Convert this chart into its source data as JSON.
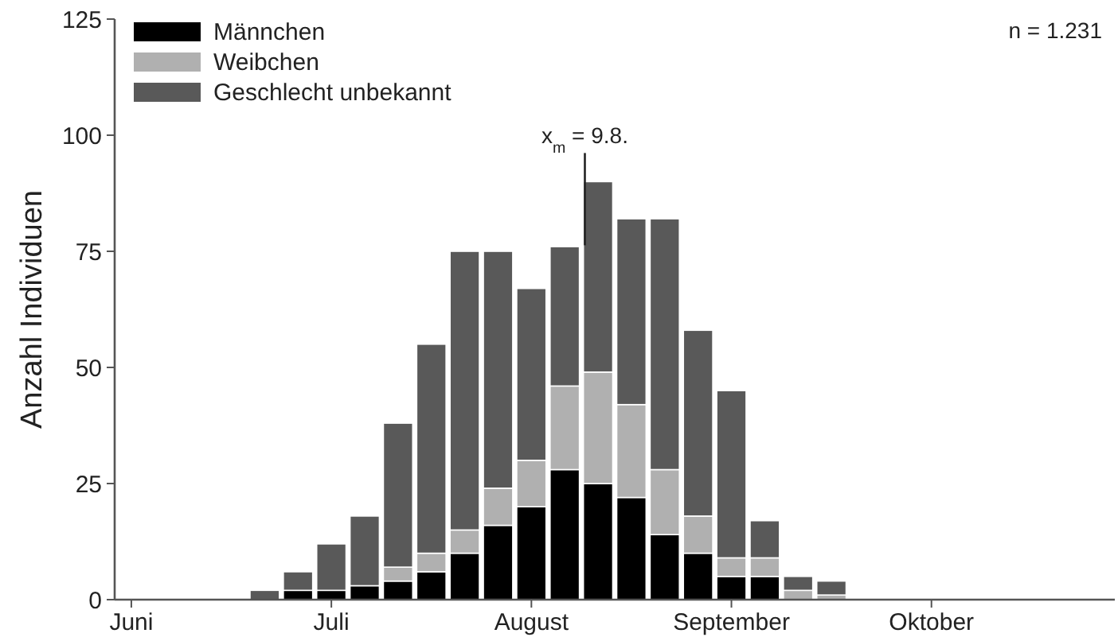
{
  "chart_data": {
    "type": "bar",
    "stacked": true,
    "ylabel": "Anzahl Individuen",
    "categories": [
      "Juni",
      null,
      null,
      null,
      null,
      null,
      "Juli",
      null,
      null,
      null,
      null,
      null,
      "August",
      null,
      null,
      null,
      null,
      null,
      "September",
      null,
      null,
      null,
      null,
      null,
      "Oktober",
      null,
      null,
      null,
      null,
      null
    ],
    "ylim": [
      0,
      125
    ],
    "yticks": [
      0,
      25,
      50,
      75,
      100,
      125
    ],
    "series": [
      {
        "name": "Männchen",
        "color": "#000000",
        "values": [
          0,
          0,
          0,
          0,
          0,
          2,
          2,
          3,
          4,
          6,
          10,
          16,
          20,
          28,
          25,
          22,
          14,
          10,
          5,
          5,
          0,
          0,
          0,
          0,
          0,
          0,
          0,
          0,
          0,
          0
        ]
      },
      {
        "name": "Weibchen",
        "color": "#b0b0b0",
        "values": [
          0,
          0,
          0,
          0,
          0,
          0,
          0,
          0,
          3,
          4,
          5,
          8,
          10,
          18,
          24,
          20,
          14,
          8,
          4,
          4,
          2,
          1,
          0,
          0,
          0,
          0,
          0,
          0,
          0,
          0
        ]
      },
      {
        "name": "Geschlecht unbekannt",
        "color": "#595959",
        "values": [
          0,
          0,
          0,
          0,
          2,
          4,
          10,
          15,
          31,
          45,
          60,
          51,
          37,
          30,
          41,
          40,
          54,
          40,
          36,
          8,
          3,
          3,
          0,
          0,
          0,
          0,
          0,
          0,
          0,
          0
        ]
      }
    ],
    "annotations": [
      {
        "text": "x$_{m}$ = 9.8.",
        "y": 90
      },
      "n = 1.231"
    ],
    "legend": "top left",
    "grid": false
  }
}
